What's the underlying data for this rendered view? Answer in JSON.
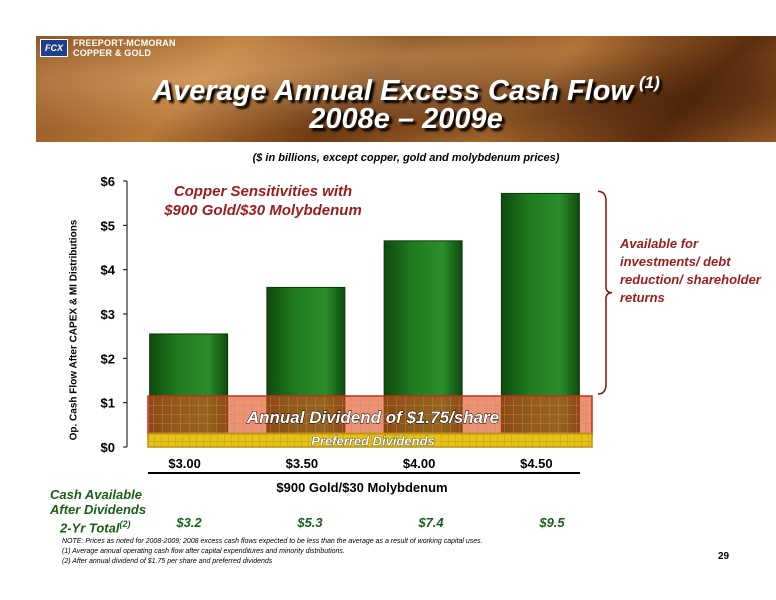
{
  "header": {
    "logo_mark": "FCX",
    "logo_line1": "FREEPORT-MCMORAN",
    "logo_line2": "COPPER & GOLD",
    "title_line1": "Average Annual Excess Cash Flow",
    "title_sup": "(1)",
    "title_line2": "2008e – 2009e",
    "subtitle": "($ in billions, except copper, gold and molybdenum prices)"
  },
  "chart_data": {
    "type": "bar",
    "categories": [
      "$3.00",
      "$3.50",
      "$4.00",
      "$4.50"
    ],
    "values": [
      2.55,
      3.6,
      4.65,
      5.72
    ],
    "ylabel": "Op. Cash Flow After CAPEX & MI Distributions",
    "xlabel": "$900 Gold/$30 Molybdenum",
    "ylim": [
      0,
      6
    ],
    "yticks": [
      "$0",
      "$1",
      "$2",
      "$3",
      "$4",
      "$5",
      "$6"
    ],
    "sensitivity_label_line1": "Copper Sensitivities with",
    "sensitivity_label_line2": "$900 Gold/$30 Molybdenum",
    "bands": [
      {
        "name": "Annual Dividend of $1.75/share",
        "from": 0.25,
        "to": 1.15,
        "color": "#d84a1a"
      },
      {
        "name": "Preferred Dividends",
        "from": 0.0,
        "to": 0.3,
        "color": "#e6c21a"
      }
    ],
    "bar_color": "#1f7a1f",
    "grid": false
  },
  "annotation": {
    "text": "Available for investments/ debt reduction/ shareholder returns",
    "color": "#9c1c1c"
  },
  "cash_available": {
    "label_line1": "Cash Available",
    "label_line2": "After Dividends",
    "label_line3": "2-Yr Total",
    "label_sup": "(2)",
    "values": [
      "$3.2",
      "$5.3",
      "$7.4",
      "$9.5"
    ]
  },
  "notes": {
    "line1": "NOTE: Prices as noted for 2008-2009; 2008 excess cash flows expected to be less than the average as a result of working capital uses.",
    "line2": "(1) Average annual operating cash flow after capital expenditures and minority distributions.",
    "line3": "(2) After annual dividend of $1.75 per share and preferred dividends"
  },
  "page_number": "29"
}
